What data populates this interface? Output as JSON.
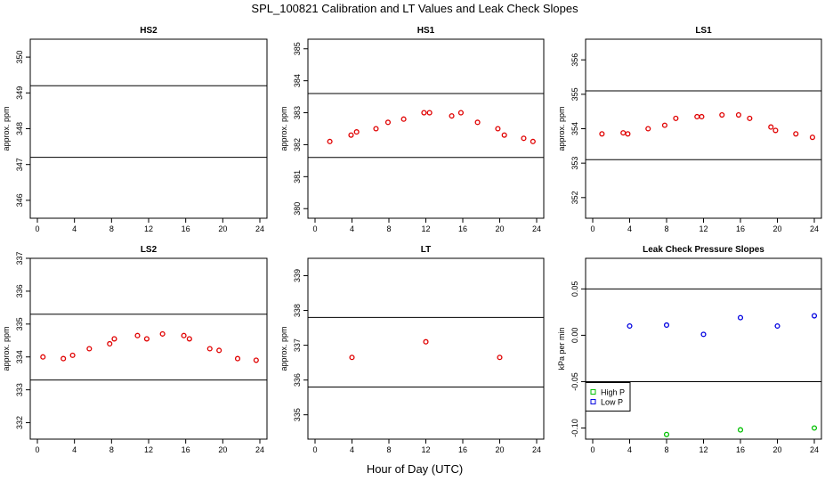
{
  "title": "SPL_100821  Calibration and LT Values and Leak Check Slopes",
  "xlabel": "Hour of Day (UTC)",
  "chart_data": [
    {
      "id": "hs2",
      "type": "scatter",
      "title": "HS2",
      "ylabel": "approx. ppm",
      "xlim": [
        0,
        24
      ],
      "xticks": [
        0,
        4,
        8,
        12,
        16,
        20,
        24
      ],
      "ylim": [
        345.5,
        350.5
      ],
      "yticks": [
        346,
        347,
        348,
        349,
        350
      ],
      "hlines": [
        349.2,
        347.2
      ],
      "series": [
        {
          "color": "#e00000",
          "shape": "circle",
          "x": [],
          "y": []
        }
      ]
    },
    {
      "id": "hs1",
      "type": "scatter",
      "title": "HS1",
      "ylabel": "approx. ppm",
      "xlim": [
        0,
        24
      ],
      "xticks": [
        0,
        4,
        8,
        12,
        16,
        20,
        24
      ],
      "ylim": [
        379.7,
        385.3
      ],
      "yticks": [
        380,
        381,
        382,
        383,
        384,
        385
      ],
      "hlines": [
        383.6,
        381.6
      ],
      "series": [
        {
          "color": "#e00000",
          "shape": "circle",
          "x": [
            1.6,
            3.9,
            4.5,
            6.6,
            7.9,
            9.6,
            11.8,
            12.4,
            14.8,
            15.8,
            17.6,
            19.8,
            20.5,
            22.6,
            23.6
          ],
          "y": [
            382.1,
            382.3,
            382.4,
            382.5,
            382.7,
            382.8,
            383.0,
            383.0,
            382.9,
            383.0,
            382.7,
            382.5,
            382.3,
            382.2,
            382.1
          ]
        }
      ]
    },
    {
      "id": "ls1",
      "type": "scatter",
      "title": "LS1",
      "ylabel": "approx. ppm",
      "xlim": [
        0,
        24
      ],
      "xticks": [
        0,
        4,
        8,
        12,
        16,
        20,
        24
      ],
      "ylim": [
        351.4,
        356.6
      ],
      "yticks": [
        352,
        353,
        354,
        355,
        356
      ],
      "hlines": [
        355.1,
        353.1
      ],
      "series": [
        {
          "color": "#e00000",
          "shape": "circle",
          "x": [
            1.0,
            3.3,
            3.8,
            6.0,
            7.8,
            9.0,
            11.3,
            11.8,
            14.0,
            15.8,
            17.0,
            19.3,
            19.8,
            22.0,
            23.8
          ],
          "y": [
            353.85,
            353.88,
            353.85,
            354.0,
            354.1,
            354.3,
            354.35,
            354.35,
            354.4,
            354.4,
            354.3,
            354.05,
            353.95,
            353.85,
            353.75
          ]
        }
      ]
    },
    {
      "id": "ls2",
      "type": "scatter",
      "title": "LS2",
      "ylabel": "approx. ppm",
      "xlim": [
        0,
        24
      ],
      "xticks": [
        0,
        4,
        8,
        12,
        16,
        20,
        24
      ],
      "ylim": [
        331.5,
        337.0
      ],
      "yticks": [
        332,
        333,
        334,
        335,
        336,
        337
      ],
      "hlines": [
        335.3,
        333.3
      ],
      "series": [
        {
          "color": "#e00000",
          "shape": "circle",
          "x": [
            0.6,
            2.8,
            3.8,
            5.6,
            7.8,
            8.3,
            10.8,
            11.8,
            13.5,
            15.8,
            16.4,
            18.6,
            19.6,
            21.6,
            23.6
          ],
          "y": [
            334.0,
            333.95,
            334.05,
            334.25,
            334.4,
            334.55,
            334.65,
            334.55,
            334.7,
            334.65,
            334.55,
            334.25,
            334.2,
            333.95,
            333.9
          ]
        }
      ]
    },
    {
      "id": "lt",
      "type": "scatter",
      "title": "LT",
      "ylabel": "approx. ppm",
      "xlim": [
        0,
        24
      ],
      "xticks": [
        0,
        4,
        8,
        12,
        16,
        20,
        24
      ],
      "ylim": [
        334.3,
        339.5
      ],
      "yticks": [
        335,
        336,
        337,
        338,
        339
      ],
      "hlines": [
        337.8,
        335.8
      ],
      "series": [
        {
          "color": "#e00000",
          "shape": "circle",
          "x": [
            4.0,
            12.0,
            20.0
          ],
          "y": [
            336.65,
            337.1,
            336.65
          ]
        }
      ]
    },
    {
      "id": "leak",
      "type": "scatter",
      "title": "Leak Check Pressure Slopes",
      "ylabel": "kPa per min",
      "xlim": [
        0,
        24
      ],
      "xticks": [
        0,
        4,
        8,
        12,
        16,
        20,
        24
      ],
      "ylim": [
        -0.112,
        0.083
      ],
      "yticks": [
        -0.1,
        -0.05,
        0.0,
        0.05
      ],
      "ytick_labels": [
        "-0.10",
        "-0.05",
        "0.00",
        "0.05"
      ],
      "hlines": [
        0.05,
        -0.05
      ],
      "legend": {
        "position": "lower-left",
        "entries": [
          {
            "label": "High P",
            "color": "#00c000"
          },
          {
            "label": "Low P",
            "color": "#0000e0"
          }
        ]
      },
      "series": [
        {
          "name": "High P",
          "color": "#00c000",
          "shape": "circle",
          "x": [
            8,
            16,
            24
          ],
          "y": [
            -0.107,
            -0.102,
            -0.1
          ]
        },
        {
          "name": "Low P",
          "color": "#0000e0",
          "shape": "circle",
          "x": [
            4,
            8,
            12,
            16,
            20,
            24
          ],
          "y": [
            0.01,
            0.011,
            0.001,
            0.019,
            0.01,
            0.021
          ]
        }
      ]
    }
  ]
}
